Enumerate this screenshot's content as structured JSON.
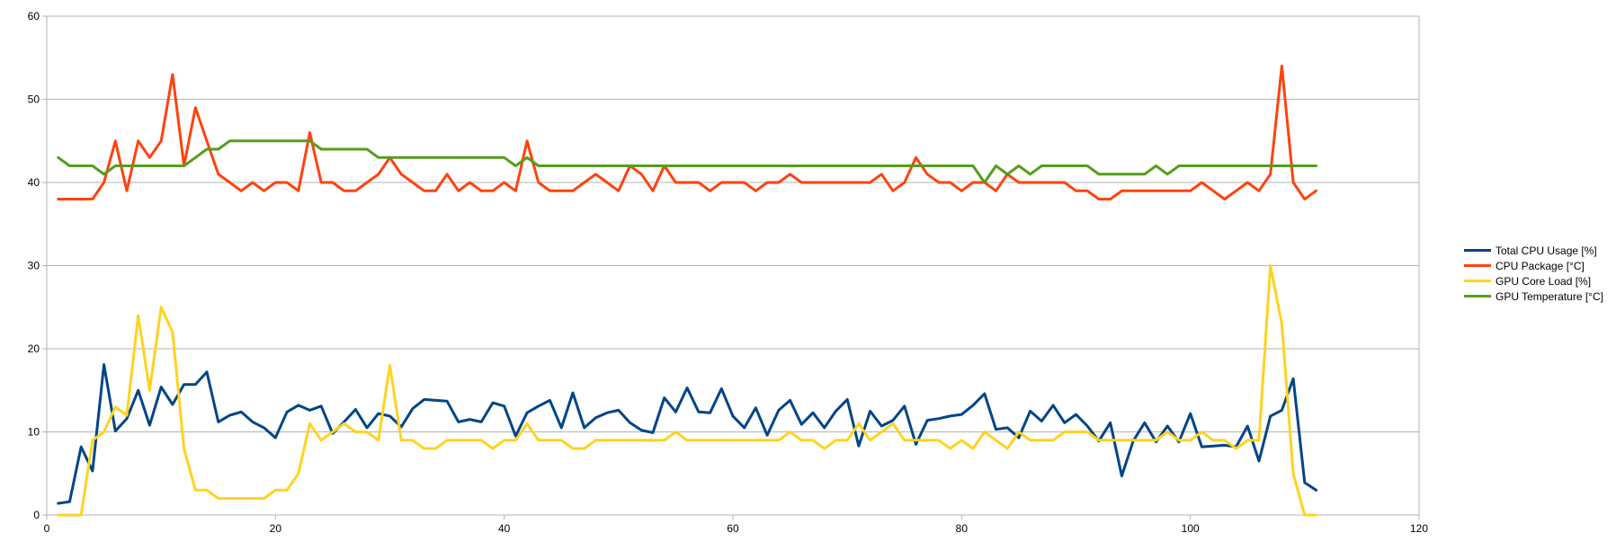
{
  "chart_data": {
    "type": "line",
    "title": "",
    "xlabel": "",
    "ylabel": "",
    "xlim": [
      0,
      120
    ],
    "ylim": [
      0,
      60
    ],
    "xticks": [
      0,
      20,
      40,
      60,
      80,
      100,
      120
    ],
    "yticks": [
      0,
      10,
      20,
      30,
      40,
      50,
      60
    ],
    "grid": "horizontal",
    "legend_position": "right",
    "series": [
      {
        "name": "Total CPU Usage [%]",
        "color": "#004586",
        "values": [
          1.4,
          1.6,
          8.2,
          5.3,
          18.1,
          10.1,
          11.6,
          15.0,
          10.8,
          15.4,
          13.3,
          15.7,
          15.7,
          17.2,
          11.2,
          12.0,
          12.4,
          11.2,
          10.5,
          9.3,
          12.4,
          13.2,
          12.6,
          13.1,
          9.8,
          11.2,
          12.7,
          10.5,
          12.2,
          11.9,
          10.6,
          12.8,
          13.9,
          13.8,
          13.7,
          11.2,
          11.5,
          11.2,
          13.5,
          13.1,
          9.5,
          12.3,
          13.1,
          13.8,
          10.5,
          14.7,
          10.5,
          11.7,
          12.3,
          12.6,
          11.1,
          10.2,
          9.9,
          14.1,
          12.4,
          15.3,
          12.4,
          12.3,
          15.2,
          11.9,
          10.5,
          12.9,
          9.6,
          12.6,
          13.8,
          10.9,
          12.3,
          10.5,
          12.5,
          13.9,
          8.3,
          12.5,
          10.7,
          11.4,
          13.1,
          8.5,
          11.4,
          11.6,
          11.9,
          12.1,
          13.2,
          14.6,
          10.3,
          10.5,
          9.3,
          12.5,
          11.3,
          13.2,
          11.1,
          12.1,
          10.7,
          8.9,
          11.1,
          4.7,
          8.9,
          11.1,
          8.8,
          10.7,
          8.8,
          12.2,
          8.2,
          8.3,
          8.4,
          8.2,
          10.7,
          6.5,
          11.9,
          12.6,
          16.4,
          3.9,
          3.0
        ]
      },
      {
        "name": "CPU Package [°C]",
        "color": "#ff420e",
        "values": [
          38,
          38,
          38,
          38,
          40,
          45,
          39,
          45,
          43,
          45,
          53,
          42,
          49,
          45,
          41,
          40,
          39,
          40,
          39,
          40,
          40,
          39,
          46,
          40,
          40,
          39,
          39,
          40,
          41,
          43,
          41,
          40,
          39,
          39,
          41,
          39,
          40,
          39,
          39,
          40,
          39,
          45,
          40,
          39,
          39,
          39,
          40,
          41,
          40,
          39,
          42,
          41,
          39,
          42,
          40,
          40,
          40,
          39,
          40,
          40,
          40,
          39,
          40,
          40,
          41,
          40,
          40,
          40,
          40,
          40,
          40,
          40,
          41,
          39,
          40,
          43,
          41,
          40,
          40,
          39,
          40,
          40,
          39,
          41,
          40,
          40,
          40,
          40,
          40,
          39,
          39,
          38,
          38,
          39,
          39,
          39,
          39,
          39,
          39,
          39,
          40,
          39,
          38,
          39,
          40,
          39,
          41,
          54,
          40,
          38,
          39
        ]
      },
      {
        "name": "GPU Core Load [%]",
        "color": "#ffd320",
        "values": [
          0,
          0,
          0,
          9,
          10,
          13,
          12,
          24,
          15,
          25,
          22,
          8,
          3,
          3,
          2,
          2,
          2,
          2,
          2,
          3,
          3,
          5,
          11,
          9,
          10,
          11,
          10,
          10,
          9,
          18,
          9,
          9,
          8,
          8,
          9,
          9,
          9,
          9,
          8,
          9,
          9,
          11,
          9,
          9,
          9,
          8,
          8,
          9,
          9,
          9,
          9,
          9,
          9,
          9,
          10,
          9,
          9,
          9,
          9,
          9,
          9,
          9,
          9,
          9,
          10,
          9,
          9,
          8,
          9,
          9,
          11,
          9,
          10,
          11,
          9,
          9,
          9,
          9,
          8,
          9,
          8,
          10,
          9,
          8,
          10,
          9,
          9,
          9,
          10,
          10,
          10,
          9,
          9,
          9,
          9,
          9,
          9,
          10,
          9,
          9,
          10,
          9,
          9,
          8,
          9,
          9,
          30,
          23,
          5,
          0,
          0
        ]
      },
      {
        "name": "GPU Temperature [°C]",
        "color": "#579d1c",
        "values": [
          43,
          42,
          42,
          42,
          41,
          42,
          42,
          42,
          42,
          42,
          42,
          42,
          43,
          44,
          44,
          45,
          45,
          45,
          45,
          45,
          45,
          45,
          45,
          44,
          44,
          44,
          44,
          44,
          43,
          43,
          43,
          43,
          43,
          43,
          43,
          43,
          43,
          43,
          43,
          43,
          42,
          43,
          42,
          42,
          42,
          42,
          42,
          42,
          42,
          42,
          42,
          42,
          42,
          42,
          42,
          42,
          42,
          42,
          42,
          42,
          42,
          42,
          42,
          42,
          42,
          42,
          42,
          42,
          42,
          42,
          42,
          42,
          42,
          42,
          42,
          42,
          42,
          42,
          42,
          42,
          42,
          40,
          42,
          41,
          42,
          41,
          42,
          42,
          42,
          42,
          42,
          41,
          41,
          41,
          41,
          41,
          42,
          41,
          42,
          42,
          42,
          42,
          42,
          42,
          42,
          42,
          42,
          42,
          42,
          42,
          42
        ]
      }
    ]
  }
}
